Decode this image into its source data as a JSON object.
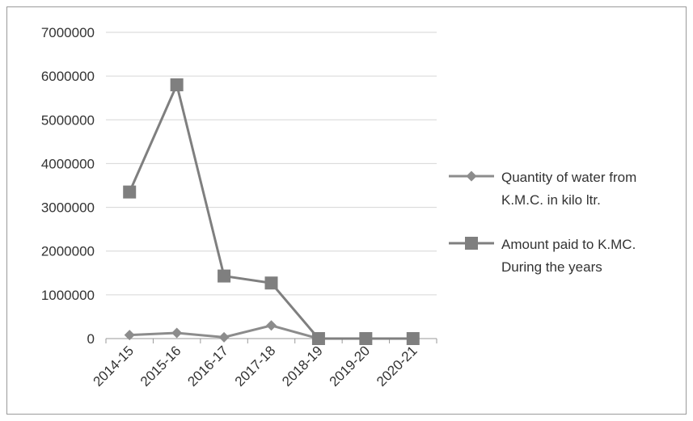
{
  "chart_data": {
    "type": "line",
    "categories": [
      "2014-15",
      "2015-16",
      "2016-17",
      "2017-18",
      "2018-19",
      "2019-20",
      "2020-21"
    ],
    "ylim": [
      0,
      7000000
    ],
    "yticks": [
      0,
      1000000,
      2000000,
      3000000,
      4000000,
      5000000,
      6000000,
      7000000
    ],
    "grid": true,
    "legend_position": "right",
    "series": [
      {
        "name": "Quantity of water from K.M.C. in kilo ltr.",
        "legend_lines": [
          "Quantity of water from",
          "K.M.C. in kilo ltr."
        ],
        "marker": "diamond",
        "color": "#8c8c8c",
        "values": [
          80000,
          130000,
          30000,
          300000,
          0,
          0,
          0
        ]
      },
      {
        "name": "Amount paid to K.MC. During the years",
        "legend_lines": [
          "Amount paid to K.MC.",
          "During the years"
        ],
        "marker": "square",
        "color": "#7f7f7f",
        "values": [
          3350000,
          5800000,
          1430000,
          1270000,
          0,
          0,
          0
        ]
      }
    ]
  }
}
